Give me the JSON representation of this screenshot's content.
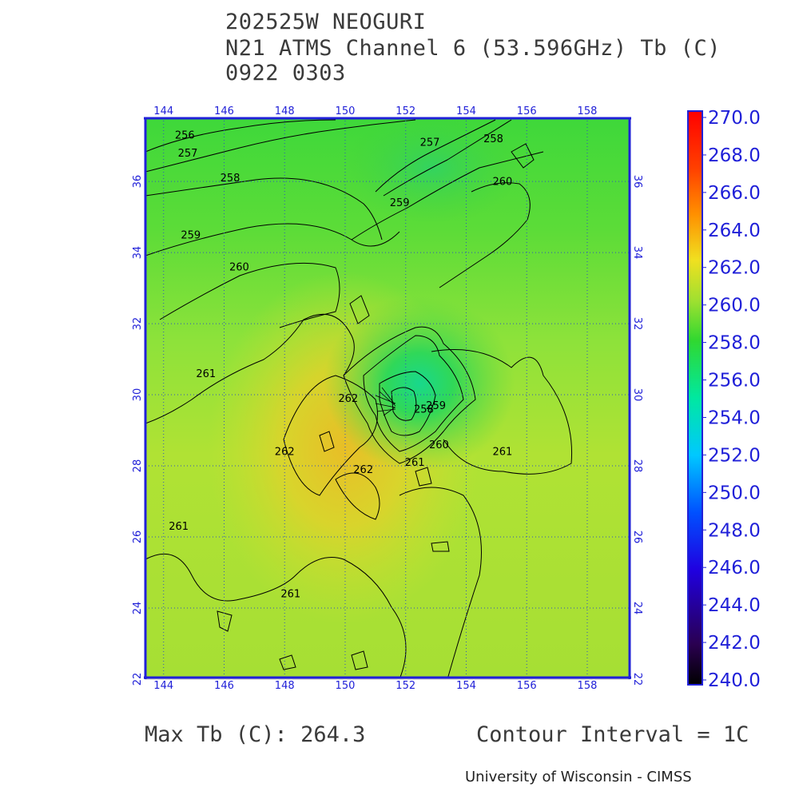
{
  "title": {
    "line1": "202525W NEOGURI",
    "line2": "N21 ATMS Channel 6 (53.596GHz) Tb (C)",
    "line3": "0922 0303"
  },
  "footer": {
    "max_tb": "Max Tb (C): 264.3",
    "contour_interval": "Contour Interval = 1C",
    "credit": "University of Wisconsin - CIMSS"
  },
  "colors": {
    "axis_blue": "#2020d8",
    "grid": "#3050c0",
    "contour": "#000000"
  },
  "chart_data": {
    "type": "heatmap",
    "title": "202525W NEOGURI",
    "xlabel": "",
    "ylabel": "",
    "xlim": [
      143.4,
      159.4
    ],
    "ylim": [
      22,
      37.8
    ],
    "x_ticks": [
      "144",
      "146",
      "148",
      "150",
      "152",
      "154",
      "156",
      "158"
    ],
    "y_ticks": [
      "22",
      "24",
      "26",
      "28",
      "30",
      "32",
      "34",
      "36"
    ],
    "grid": "dotted",
    "colorbar": {
      "min": 240.0,
      "max": 270.0,
      "tick_labels": [
        "270.0",
        "268.0",
        "266.0",
        "264.0",
        "262.0",
        "260.0",
        "258.0",
        "256.0",
        "254.0",
        "252.0",
        "250.0",
        "248.0",
        "246.0",
        "244.0",
        "242.0",
        "240.0"
      ]
    },
    "field_levels": {
      "background_north": 257.5,
      "background_south": 260.8,
      "warm_core_center": [
        150.6,
        29.8
      ],
      "warm_core_value": 264.3,
      "cold_core_center": [
        152.0,
        30.0
      ],
      "cold_core_value": 254.5
    },
    "contour_labels": [
      {
        "text": "256",
        "lon": 144.7,
        "lat": 37.2
      },
      {
        "text": "257",
        "lon": 144.8,
        "lat": 36.7
      },
      {
        "text": "258",
        "lon": 146.2,
        "lat": 36.0
      },
      {
        "text": "259",
        "lon": 144.9,
        "lat": 34.4
      },
      {
        "text": "260",
        "lon": 146.5,
        "lat": 33.5
      },
      {
        "text": "261",
        "lon": 145.4,
        "lat": 30.5
      },
      {
        "text": "262",
        "lon": 150.1,
        "lat": 29.8
      },
      {
        "text": "262",
        "lon": 148.0,
        "lat": 28.3
      },
      {
        "text": "262",
        "lon": 150.6,
        "lat": 27.8
      },
      {
        "text": "261",
        "lon": 144.5,
        "lat": 26.2
      },
      {
        "text": "261",
        "lon": 148.2,
        "lat": 24.3
      },
      {
        "text": "261",
        "lon": 155.2,
        "lat": 28.3
      },
      {
        "text": "261",
        "lon": 152.3,
        "lat": 28.0
      },
      {
        "text": "260",
        "lon": 153.1,
        "lat": 28.5
      },
      {
        "text": "260",
        "lon": 155.2,
        "lat": 35.9
      },
      {
        "text": "259",
        "lon": 151.8,
        "lat": 35.3
      },
      {
        "text": "258",
        "lon": 154.9,
        "lat": 37.1
      },
      {
        "text": "257",
        "lon": 152.8,
        "lat": 37.0
      },
      {
        "text": "258",
        "lon": 152.6,
        "lat": 29.5
      },
      {
        "text": "259",
        "lon": 153.0,
        "lat": 29.6
      }
    ]
  }
}
